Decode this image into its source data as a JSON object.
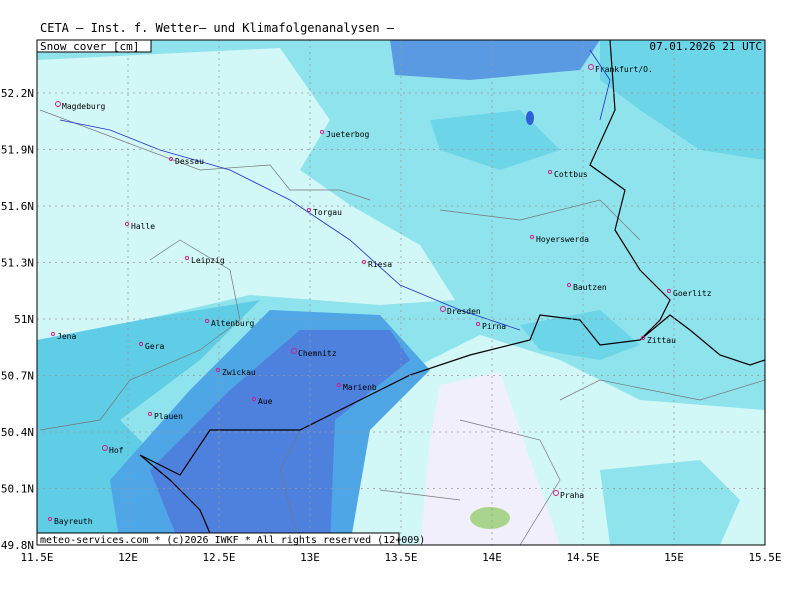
{
  "header": {
    "title": "CETA — Inst. f. Wetter— und Klimafolgenanalysen —",
    "parameter": "Snow_cover [cm]",
    "time": "07.01.2026 21 UTC"
  },
  "footer": "meteo-services.com * (c)2026 IWKF * All rights reserved (12+009)",
  "lon_ticks": [
    {
      "value": 11.5,
      "label": "11.5E"
    },
    {
      "value": 12,
      "label": "12E"
    },
    {
      "value": 12.5,
      "label": "12.5E"
    },
    {
      "value": 13,
      "label": "13E"
    },
    {
      "value": 13.5,
      "label": "13.5E"
    },
    {
      "value": 14,
      "label": "14E"
    },
    {
      "value": 14.5,
      "label": "14.5E"
    },
    {
      "value": 15,
      "label": "15E"
    },
    {
      "value": 15.5,
      "label": "15.5E"
    }
  ],
  "lat_ticks": [
    {
      "value": 49.8,
      "label": "49.8N"
    },
    {
      "value": 50.1,
      "label": "50.1N"
    },
    {
      "value": 50.4,
      "label": "50.4N"
    },
    {
      "value": 50.7,
      "label": "50.7N"
    },
    {
      "value": 51,
      "label": "51N"
    },
    {
      "value": 51.3,
      "label": "51.3N"
    },
    {
      "value": 51.6,
      "label": "51.6N"
    },
    {
      "value": 51.9,
      "label": "51.9N"
    },
    {
      "value": 52.2,
      "label": "52.2N"
    }
  ],
  "cities": [
    "Magdeburg",
    "Jueterbog",
    "Frankfurt/O.",
    "Dessau",
    "Cottbus",
    "Halle",
    "Torgau",
    "Hoyerswerda",
    "Leipzig",
    "Riesa",
    "Bautzen",
    "Goerlitz",
    "Dresden",
    "Pirna",
    "Zittau",
    "Altenburg",
    "Jena",
    "Gera",
    "Chemnitz",
    "Zwickau",
    "Marienb",
    "Aue",
    "Plauen",
    "Hof",
    "Praha",
    "Bayreuth"
  ]
}
